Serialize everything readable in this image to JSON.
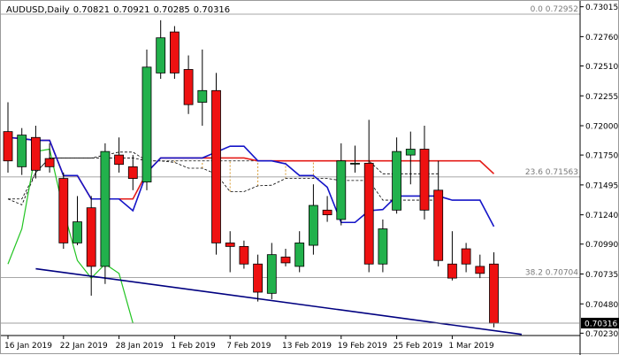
{
  "header": {
    "symbol": "AUDUSD,Daily",
    "open": "0.70821",
    "high": "0.70921",
    "low": "0.70285",
    "close": "0.70316"
  },
  "colors": {
    "background": "#ffffff",
    "bull_candle": "#22b14c",
    "bear_candle": "#ee1111",
    "kijun": "#e41b17",
    "tenkan": "#1515c8",
    "chikou": "#22c422",
    "cloud": "#d89a30",
    "cloud_edge": "#000000",
    "trendline": "#000080",
    "fib_line": "#8a8a8a",
    "current_price_line": "#7f7f7f",
    "text": "#000000",
    "fib_text": "#7a7a7a"
  },
  "chart_data": {
    "type": "candlestick",
    "price_axis_ticks": [
      "0.73015",
      "0.72760",
      "0.72510",
      "0.72255",
      "0.72000",
      "0.71750",
      "0.71495",
      "0.71240",
      "0.70990",
      "0.70735",
      "0.70480",
      "0.70230"
    ],
    "current_price": "0.70316",
    "ylim": [
      0.7021,
      0.7305
    ],
    "date_labels": [
      "16 Jan 2019",
      "22 Jan 2019",
      "28 Jan 2019",
      "1 Feb 2019",
      "7 Feb 2019",
      "13 Feb 2019",
      "19 Feb 2019",
      "25 Feb 2019",
      "1 Mar 2019"
    ],
    "date_label_bar_index": [
      0,
      4,
      8,
      12,
      16,
      20,
      24,
      28,
      32
    ],
    "fib_levels": [
      {
        "label": "0.0 0.72952",
        "value": 0.72952
      },
      {
        "label": "23.6 0.71563",
        "value": 0.71563
      },
      {
        "label": "38.2 0.70704",
        "value": 0.70704
      }
    ],
    "candles": [
      {
        "o": 0.7195,
        "h": 0.722,
        "l": 0.716,
        "c": 0.717
      },
      {
        "o": 0.7165,
        "h": 0.7198,
        "l": 0.7158,
        "c": 0.7192
      },
      {
        "o": 0.719,
        "h": 0.72,
        "l": 0.7155,
        "c": 0.7162
      },
      {
        "o": 0.7172,
        "h": 0.7185,
        "l": 0.716,
        "c": 0.7165
      },
      {
        "o": 0.7155,
        "h": 0.716,
        "l": 0.7095,
        "c": 0.71
      },
      {
        "o": 0.71,
        "h": 0.714,
        "l": 0.7098,
        "c": 0.7118
      },
      {
        "o": 0.713,
        "h": 0.714,
        "l": 0.7055,
        "c": 0.708
      },
      {
        "o": 0.708,
        "h": 0.7185,
        "l": 0.7065,
        "c": 0.7178
      },
      {
        "o": 0.7175,
        "h": 0.719,
        "l": 0.716,
        "c": 0.7167
      },
      {
        "o": 0.7165,
        "h": 0.7175,
        "l": 0.7145,
        "c": 0.7155
      },
      {
        "o": 0.7152,
        "h": 0.7265,
        "l": 0.7145,
        "c": 0.725
      },
      {
        "o": 0.7245,
        "h": 0.729,
        "l": 0.724,
        "c": 0.7275
      },
      {
        "o": 0.728,
        "h": 0.7285,
        "l": 0.724,
        "c": 0.7245
      },
      {
        "o": 0.7248,
        "h": 0.726,
        "l": 0.721,
        "c": 0.7218
      },
      {
        "o": 0.722,
        "h": 0.7265,
        "l": 0.72,
        "c": 0.723
      },
      {
        "o": 0.723,
        "h": 0.7245,
        "l": 0.709,
        "c": 0.71
      },
      {
        "o": 0.71,
        "h": 0.711,
        "l": 0.7075,
        "c": 0.7097
      },
      {
        "o": 0.7097,
        "h": 0.7102,
        "l": 0.7078,
        "c": 0.7082
      },
      {
        "o": 0.7082,
        "h": 0.709,
        "l": 0.705,
        "c": 0.7058
      },
      {
        "o": 0.7057,
        "h": 0.71,
        "l": 0.7052,
        "c": 0.709
      },
      {
        "o": 0.7088,
        "h": 0.7095,
        "l": 0.708,
        "c": 0.7083
      },
      {
        "o": 0.708,
        "h": 0.711,
        "l": 0.7075,
        "c": 0.71
      },
      {
        "o": 0.7098,
        "h": 0.715,
        "l": 0.709,
        "c": 0.7132
      },
      {
        "o": 0.7128,
        "h": 0.714,
        "l": 0.7118,
        "c": 0.7124
      },
      {
        "o": 0.712,
        "h": 0.7185,
        "l": 0.7115,
        "c": 0.717
      },
      {
        "o": 0.7168,
        "h": 0.7183,
        "l": 0.716,
        "c": 0.7168
      },
      {
        "o": 0.7168,
        "h": 0.7205,
        "l": 0.7075,
        "c": 0.7082
      },
      {
        "o": 0.7082,
        "h": 0.712,
        "l": 0.7075,
        "c": 0.7112
      },
      {
        "o": 0.7128,
        "h": 0.719,
        "l": 0.7125,
        "c": 0.7178
      },
      {
        "o": 0.7175,
        "h": 0.7195,
        "l": 0.715,
        "c": 0.718
      },
      {
        "o": 0.718,
        "h": 0.72,
        "l": 0.712,
        "c": 0.7128
      },
      {
        "o": 0.7145,
        "h": 0.717,
        "l": 0.708,
        "c": 0.7085
      },
      {
        "o": 0.7082,
        "h": 0.711,
        "l": 0.7068,
        "c": 0.707
      },
      {
        "o": 0.7095,
        "h": 0.71,
        "l": 0.7075,
        "c": 0.7082
      },
      {
        "o": 0.708,
        "h": 0.709,
        "l": 0.707,
        "c": 0.7074
      },
      {
        "o": 0.7082,
        "h": 0.7092,
        "l": 0.7028,
        "c": 0.70316
      }
    ]
  }
}
